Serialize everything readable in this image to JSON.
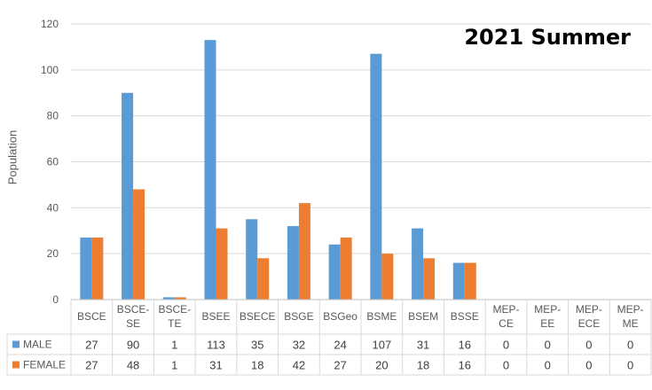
{
  "chart_data": {
    "type": "bar",
    "title": "2021 Summer",
    "xlabel": "",
    "ylabel": "Population",
    "ylim": [
      0,
      120
    ],
    "yticks": [
      0,
      20,
      40,
      60,
      80,
      100,
      120
    ],
    "grid": true,
    "legend": "data-table",
    "categories": [
      [
        "BSCE"
      ],
      [
        "BSCE-",
        "SE"
      ],
      [
        "BSCE-",
        "TE"
      ],
      [
        "BSEE"
      ],
      [
        "BSECE"
      ],
      [
        "BSGE"
      ],
      [
        "BSGeo"
      ],
      [
        "BSME"
      ],
      [
        "BSEM"
      ],
      [
        "BSSE"
      ],
      [
        "MEP-",
        "CE"
      ],
      [
        "MEP-",
        "EE"
      ],
      [
        "MEP-",
        "ECE"
      ],
      [
        "MEP-",
        "ME"
      ]
    ],
    "series": [
      {
        "name": "MALE",
        "color": "#5B9BD5",
        "values": [
          27,
          90,
          1,
          113,
          35,
          32,
          24,
          107,
          31,
          16,
          0,
          0,
          0,
          0
        ]
      },
      {
        "name": "FEMALE",
        "color": "#ED7D31",
        "values": [
          27,
          48,
          1,
          31,
          18,
          42,
          27,
          20,
          18,
          16,
          0,
          0,
          0,
          0
        ]
      }
    ]
  }
}
